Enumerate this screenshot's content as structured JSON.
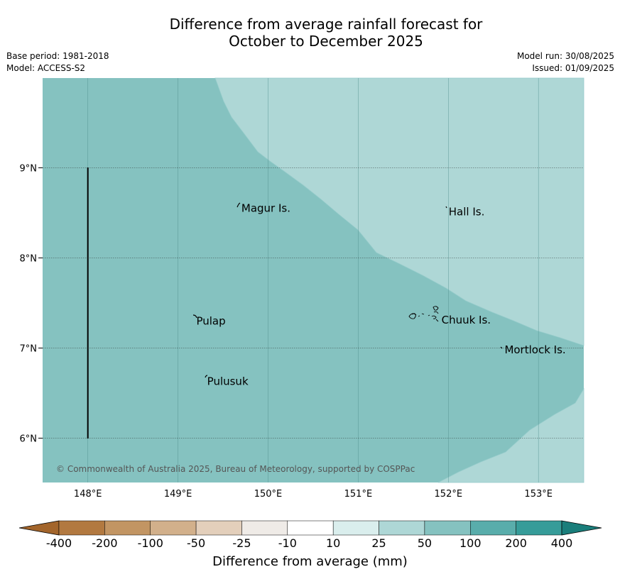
{
  "title": {
    "line1": "Difference from average rainfall forecast for",
    "line2": "October to December 2025"
  },
  "meta_left": {
    "base_period": "Base period: 1981-2018",
    "model": "Model: ACCESS-S2"
  },
  "meta_right": {
    "model_run": "Model run: 30/08/2025",
    "issued": "Issued: 01/09/2025"
  },
  "map": {
    "lon_ticks": [
      "148°E",
      "149°E",
      "150°E",
      "151°E",
      "152°E",
      "153°E"
    ],
    "lat_ticks": [
      "9°N",
      "8°N",
      "7°N",
      "6°N"
    ],
    "places": [
      {
        "name": "Magur Is.",
        "lon": 149.68,
        "lat": 8.55
      },
      {
        "name": "Hall Is.",
        "lon": 151.98,
        "lat": 8.51
      },
      {
        "name": "Pulap",
        "lon": 149.18,
        "lat": 7.3
      },
      {
        "name": "Chuuk Is.",
        "lon": 151.9,
        "lat": 7.31
      },
      {
        "name": "Mortlock Is.",
        "lon": 152.6,
        "lat": 6.98
      },
      {
        "name": "Pulusuk",
        "lon": 149.3,
        "lat": 6.63
      }
    ],
    "category_colors": {
      "10_to_25": "#daeeed",
      "25_to_50": "#aed7d6",
      "50_to_100": "#85c2c0"
    },
    "credit": "© Commonwealth of Australia 2025, Bureau of Meteorology, supported by COSPPac"
  },
  "colorbar": {
    "ticks": [
      "-400",
      "-200",
      "-100",
      "-50",
      "-25",
      "-10",
      "10",
      "25",
      "50",
      "100",
      "200",
      "400"
    ],
    "colors": [
      "#a3652b",
      "#b27940",
      "#c29563",
      "#d2b08b",
      "#e3cfbb",
      "#efebe7",
      "#ffffff",
      "#daeeed",
      "#aed7d6",
      "#85c2c0",
      "#59adab",
      "#369c99",
      "#1a7e7b"
    ],
    "label": "Difference from average (mm)"
  }
}
